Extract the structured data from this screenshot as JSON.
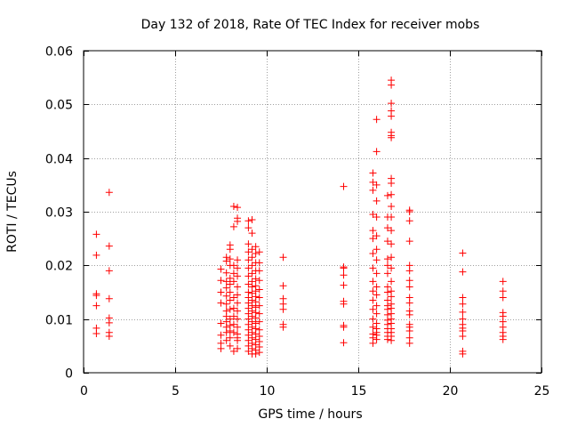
{
  "chart_data": {
    "type": "scatter",
    "title": "Day 132 of 2018, Rate Of TEC Index for receiver mobs",
    "xlabel": "GPS time / hours",
    "ylabel": "ROTI / TECUs",
    "xlim": [
      0,
      25
    ],
    "ylim": [
      0,
      0.06
    ],
    "x_ticks": [
      0,
      5,
      10,
      15,
      20,
      25
    ],
    "y_ticks": [
      0,
      0.01,
      0.02,
      0.03,
      0.04,
      0.05,
      0.06
    ],
    "x_tick_labels": [
      "0",
      "5",
      "10",
      "15",
      "20",
      "25"
    ],
    "y_tick_labels": [
      "0",
      "0.01",
      "0.02",
      "0.03",
      "0.04",
      "0.05",
      "0.06"
    ],
    "grid": true,
    "marker": "plus",
    "color": "#ff0000",
    "series": [
      {
        "points": [
          [
            0.7,
            0.0258
          ],
          [
            0.7,
            0.0219
          ],
          [
            0.7,
            0.0147
          ],
          [
            0.7,
            0.0144
          ],
          [
            0.7,
            0.0125
          ],
          [
            0.7,
            0.0083
          ],
          [
            0.7,
            0.0073
          ],
          [
            1.4,
            0.0336
          ],
          [
            1.4,
            0.0236
          ],
          [
            1.4,
            0.019
          ],
          [
            1.4,
            0.0138
          ],
          [
            1.4,
            0.0102
          ],
          [
            1.4,
            0.0093
          ],
          [
            1.4,
            0.0075
          ],
          [
            1.4,
            0.0068
          ],
          [
            7.5,
            0.0193
          ],
          [
            7.5,
            0.0172
          ],
          [
            7.5,
            0.015
          ],
          [
            7.5,
            0.013
          ],
          [
            7.5,
            0.0092
          ],
          [
            7.5,
            0.007
          ],
          [
            7.5,
            0.0055
          ],
          [
            7.5,
            0.0045
          ],
          [
            7.8,
            0.0215
          ],
          [
            7.8,
            0.0208
          ],
          [
            7.8,
            0.0186
          ],
          [
            7.8,
            0.017
          ],
          [
            7.8,
            0.0158
          ],
          [
            7.8,
            0.0143
          ],
          [
            7.8,
            0.0128
          ],
          [
            7.8,
            0.0115
          ],
          [
            7.8,
            0.0105
          ],
          [
            7.8,
            0.0095
          ],
          [
            7.8,
            0.0085
          ],
          [
            7.8,
            0.0075
          ],
          [
            7.8,
            0.006
          ],
          [
            8.0,
            0.0238
          ],
          [
            8.0,
            0.023
          ],
          [
            8.0,
            0.0212
          ],
          [
            8.0,
            0.02
          ],
          [
            8.0,
            0.0176
          ],
          [
            8.0,
            0.0165
          ],
          [
            8.0,
            0.015
          ],
          [
            8.0,
            0.0135
          ],
          [
            8.0,
            0.0118
          ],
          [
            8.0,
            0.01
          ],
          [
            8.0,
            0.0088
          ],
          [
            8.0,
            0.0078
          ],
          [
            8.0,
            0.0065
          ],
          [
            8.0,
            0.005
          ],
          [
            8.2,
            0.031
          ],
          [
            8.2,
            0.0272
          ],
          [
            8.2,
            0.02
          ],
          [
            8.2,
            0.0185
          ],
          [
            8.2,
            0.017
          ],
          [
            8.2,
            0.014
          ],
          [
            8.2,
            0.012
          ],
          [
            8.2,
            0.0105
          ],
          [
            8.2,
            0.009
          ],
          [
            8.2,
            0.0075
          ],
          [
            8.2,
            0.004
          ],
          [
            8.4,
            0.0308
          ],
          [
            8.4,
            0.0288
          ],
          [
            8.4,
            0.0282
          ],
          [
            8.4,
            0.021
          ],
          [
            8.4,
            0.0195
          ],
          [
            8.4,
            0.018
          ],
          [
            8.4,
            0.016
          ],
          [
            8.4,
            0.0145
          ],
          [
            8.4,
            0.013
          ],
          [
            8.4,
            0.0115
          ],
          [
            8.4,
            0.01
          ],
          [
            8.4,
            0.0085
          ],
          [
            8.4,
            0.0072
          ],
          [
            8.4,
            0.0065
          ],
          [
            8.4,
            0.006
          ],
          [
            8.4,
            0.0045
          ],
          [
            9.0,
            0.0283
          ],
          [
            9.0,
            0.027
          ],
          [
            9.0,
            0.024
          ],
          [
            9.0,
            0.0225
          ],
          [
            9.0,
            0.021
          ],
          [
            9.0,
            0.0195
          ],
          [
            9.0,
            0.018
          ],
          [
            9.0,
            0.0165
          ],
          [
            9.0,
            0.015
          ],
          [
            9.0,
            0.014
          ],
          [
            9.0,
            0.013
          ],
          [
            9.0,
            0.012
          ],
          [
            9.0,
            0.011
          ],
          [
            9.0,
            0.01
          ],
          [
            9.0,
            0.009
          ],
          [
            9.0,
            0.008
          ],
          [
            9.0,
            0.007
          ],
          [
            9.0,
            0.006
          ],
          [
            9.0,
            0.005
          ],
          [
            9.0,
            0.004
          ],
          [
            9.2,
            0.0285
          ],
          [
            9.2,
            0.026
          ],
          [
            9.2,
            0.023
          ],
          [
            9.2,
            0.0215
          ],
          [
            9.2,
            0.02
          ],
          [
            9.2,
            0.0185
          ],
          [
            9.2,
            0.017
          ],
          [
            9.2,
            0.016
          ],
          [
            9.2,
            0.0148
          ],
          [
            9.2,
            0.0135
          ],
          [
            9.2,
            0.0125
          ],
          [
            9.2,
            0.0115
          ],
          [
            9.2,
            0.0105
          ],
          [
            9.2,
            0.0095
          ],
          [
            9.2,
            0.0085
          ],
          [
            9.2,
            0.0075
          ],
          [
            9.2,
            0.0065
          ],
          [
            9.2,
            0.0055
          ],
          [
            9.2,
            0.0045
          ],
          [
            9.2,
            0.0035
          ],
          [
            9.4,
            0.0235
          ],
          [
            9.4,
            0.0222
          ],
          [
            9.4,
            0.0205
          ],
          [
            9.4,
            0.019
          ],
          [
            9.4,
            0.0175
          ],
          [
            9.4,
            0.0162
          ],
          [
            9.4,
            0.0152
          ],
          [
            9.4,
            0.0142
          ],
          [
            9.4,
            0.0132
          ],
          [
            9.4,
            0.0122
          ],
          [
            9.4,
            0.0112
          ],
          [
            9.4,
            0.0102
          ],
          [
            9.4,
            0.0092
          ],
          [
            9.4,
            0.0082
          ],
          [
            9.4,
            0.0072
          ],
          [
            9.4,
            0.0062
          ],
          [
            9.4,
            0.0052
          ],
          [
            9.4,
            0.0042
          ],
          [
            9.4,
            0.0035
          ],
          [
            9.6,
            0.0225
          ],
          [
            9.6,
            0.0205
          ],
          [
            9.6,
            0.019
          ],
          [
            9.6,
            0.0172
          ],
          [
            9.6,
            0.0155
          ],
          [
            9.6,
            0.014
          ],
          [
            9.6,
            0.0125
          ],
          [
            9.6,
            0.011
          ],
          [
            9.6,
            0.0095
          ],
          [
            9.6,
            0.008
          ],
          [
            9.6,
            0.0068
          ],
          [
            9.6,
            0.0058
          ],
          [
            9.6,
            0.0048
          ],
          [
            9.6,
            0.0038
          ],
          [
            10.9,
            0.0215
          ],
          [
            10.9,
            0.0162
          ],
          [
            10.9,
            0.0138
          ],
          [
            10.9,
            0.0128
          ],
          [
            10.9,
            0.0118
          ],
          [
            10.9,
            0.009
          ],
          [
            10.9,
            0.0085
          ],
          [
            14.2,
            0.0347
          ],
          [
            14.2,
            0.0197
          ],
          [
            14.2,
            0.0195
          ],
          [
            14.2,
            0.0182
          ],
          [
            14.2,
            0.0163
          ],
          [
            14.2,
            0.0133
          ],
          [
            14.2,
            0.0128
          ],
          [
            14.2,
            0.0088
          ],
          [
            14.2,
            0.0085
          ],
          [
            14.2,
            0.0056
          ],
          [
            15.8,
            0.0372
          ],
          [
            15.8,
            0.0355
          ],
          [
            15.8,
            0.034
          ],
          [
            15.8,
            0.0295
          ],
          [
            15.8,
            0.0265
          ],
          [
            15.8,
            0.025
          ],
          [
            15.8,
            0.0222
          ],
          [
            15.8,
            0.0195
          ],
          [
            15.8,
            0.017
          ],
          [
            15.8,
            0.0152
          ],
          [
            15.8,
            0.0135
          ],
          [
            15.8,
            0.0118
          ],
          [
            15.8,
            0.01
          ],
          [
            15.8,
            0.0085
          ],
          [
            15.8,
            0.0072
          ],
          [
            15.8,
            0.0065
          ],
          [
            15.8,
            0.0055
          ],
          [
            16.0,
            0.0472
          ],
          [
            16.0,
            0.0412
          ],
          [
            16.0,
            0.035
          ],
          [
            16.0,
            0.032
          ],
          [
            16.0,
            0.029
          ],
          [
            16.0,
            0.0255
          ],
          [
            16.0,
            0.023
          ],
          [
            16.0,
            0.021
          ],
          [
            16.0,
            0.0185
          ],
          [
            16.0,
            0.016
          ],
          [
            16.0,
            0.0145
          ],
          [
            16.0,
            0.0125
          ],
          [
            16.0,
            0.011
          ],
          [
            16.0,
            0.0092
          ],
          [
            16.0,
            0.0082
          ],
          [
            16.0,
            0.0075
          ],
          [
            16.0,
            0.007
          ],
          [
            16.0,
            0.0062
          ],
          [
            16.6,
            0.033
          ],
          [
            16.6,
            0.029
          ],
          [
            16.6,
            0.027
          ],
          [
            16.6,
            0.0245
          ],
          [
            16.6,
            0.0212
          ],
          [
            16.6,
            0.02
          ],
          [
            16.6,
            0.0185
          ],
          [
            16.6,
            0.016
          ],
          [
            16.6,
            0.015
          ],
          [
            16.6,
            0.0135
          ],
          [
            16.6,
            0.0125
          ],
          [
            16.6,
            0.0118
          ],
          [
            16.6,
            0.0108
          ],
          [
            16.6,
            0.0098
          ],
          [
            16.6,
            0.009
          ],
          [
            16.6,
            0.0082
          ],
          [
            16.6,
            0.0075
          ],
          [
            16.6,
            0.0068
          ],
          [
            16.6,
            0.0062
          ],
          [
            16.8,
            0.0545
          ],
          [
            16.8,
            0.0536
          ],
          [
            16.8,
            0.0502
          ],
          [
            16.8,
            0.0488
          ],
          [
            16.8,
            0.0478
          ],
          [
            16.8,
            0.0448
          ],
          [
            16.8,
            0.0442
          ],
          [
            16.8,
            0.0438
          ],
          [
            16.8,
            0.0362
          ],
          [
            16.8,
            0.0353
          ],
          [
            16.8,
            0.0332
          ],
          [
            16.8,
            0.031
          ],
          [
            16.8,
            0.029
          ],
          [
            16.8,
            0.0265
          ],
          [
            16.8,
            0.024
          ],
          [
            16.8,
            0.0215
          ],
          [
            16.8,
            0.0195
          ],
          [
            16.8,
            0.017
          ],
          [
            16.8,
            0.0152
          ],
          [
            16.8,
            0.0142
          ],
          [
            16.8,
            0.0128
          ],
          [
            16.8,
            0.012
          ],
          [
            16.8,
            0.011
          ],
          [
            16.8,
            0.01
          ],
          [
            16.8,
            0.0092
          ],
          [
            16.8,
            0.0082
          ],
          [
            16.8,
            0.0075
          ],
          [
            16.8,
            0.0068
          ],
          [
            16.8,
            0.006
          ],
          [
            17.8,
            0.0303
          ],
          [
            17.8,
            0.03
          ],
          [
            17.8,
            0.0283
          ],
          [
            17.8,
            0.0245
          ],
          [
            17.8,
            0.02
          ],
          [
            17.8,
            0.019
          ],
          [
            17.8,
            0.0172
          ],
          [
            17.8,
            0.016
          ],
          [
            17.8,
            0.014
          ],
          [
            17.8,
            0.013
          ],
          [
            17.8,
            0.0115
          ],
          [
            17.8,
            0.0108
          ],
          [
            17.8,
            0.009
          ],
          [
            17.8,
            0.0085
          ],
          [
            17.8,
            0.0078
          ],
          [
            17.8,
            0.0065
          ],
          [
            17.8,
            0.0055
          ],
          [
            20.7,
            0.0223
          ],
          [
            20.7,
            0.0188
          ],
          [
            20.7,
            0.014
          ],
          [
            20.7,
            0.0128
          ],
          [
            20.7,
            0.0113
          ],
          [
            20.7,
            0.01
          ],
          [
            20.7,
            0.009
          ],
          [
            20.7,
            0.0083
          ],
          [
            20.7,
            0.0078
          ],
          [
            20.7,
            0.0068
          ],
          [
            20.7,
            0.004
          ],
          [
            20.7,
            0.0035
          ],
          [
            22.9,
            0.017
          ],
          [
            22.9,
            0.0152
          ],
          [
            22.9,
            0.014
          ],
          [
            22.9,
            0.0112
          ],
          [
            22.9,
            0.0105
          ],
          [
            22.9,
            0.0095
          ],
          [
            22.9,
            0.0085
          ],
          [
            22.9,
            0.0075
          ],
          [
            22.9,
            0.0068
          ],
          [
            22.9,
            0.0062
          ]
        ]
      }
    ]
  }
}
